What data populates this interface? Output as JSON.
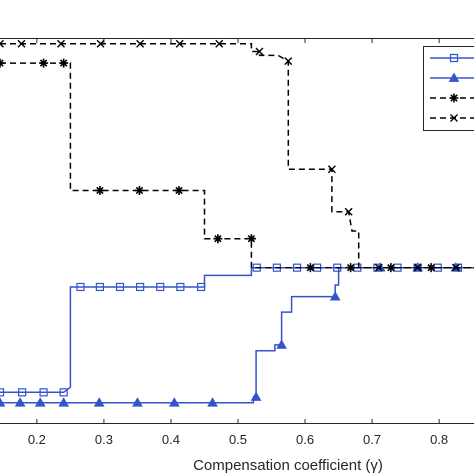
{
  "chart_data": {
    "type": "line",
    "title": "",
    "xlabel": "Compensation coefficient (γ)",
    "ylabel": "",
    "xlim": [
      0.145,
      0.852
    ],
    "ylim": [
      0,
      1
    ],
    "xticks": [
      "0.2",
      "0.3",
      "0.4",
      "0.5",
      "0.6",
      "0.7",
      "0.8"
    ],
    "xtick_values": [
      0.2,
      0.3,
      0.4,
      0.5,
      0.6,
      0.7,
      0.8
    ],
    "grid": false,
    "legend_position": "top-right",
    "series": [
      {
        "marker": "square",
        "linestyle": "solid",
        "color": "#3355cc",
        "points": [
          [
            0.145,
            0.082
          ],
          [
            0.178,
            0.082
          ],
          [
            0.21,
            0.082
          ],
          [
            0.24,
            0.082
          ],
          [
            0.25,
            0.095
          ],
          [
            0.25,
            0.355
          ],
          [
            0.265,
            0.355
          ],
          [
            0.294,
            0.355
          ],
          [
            0.324,
            0.355
          ],
          [
            0.354,
            0.355
          ],
          [
            0.384,
            0.355
          ],
          [
            0.414,
            0.355
          ],
          [
            0.445,
            0.355
          ],
          [
            0.45,
            0.355
          ],
          [
            0.45,
            0.385
          ],
          [
            0.52,
            0.385
          ],
          [
            0.52,
            0.405
          ],
          [
            0.528,
            0.405
          ],
          [
            0.558,
            0.405
          ],
          [
            0.588,
            0.405
          ],
          [
            0.618,
            0.405
          ],
          [
            0.648,
            0.405
          ],
          [
            0.678,
            0.405
          ],
          [
            0.708,
            0.405
          ],
          [
            0.738,
            0.405
          ],
          [
            0.768,
            0.405
          ],
          [
            0.798,
            0.405
          ],
          [
            0.828,
            0.405
          ],
          [
            0.852,
            0.405
          ]
        ],
        "marker_x": [
          0.145,
          0.178,
          0.21,
          0.24,
          0.265,
          0.294,
          0.324,
          0.354,
          0.384,
          0.414,
          0.445,
          0.528,
          0.558,
          0.588,
          0.618,
          0.648,
          0.678,
          0.708,
          0.738,
          0.768,
          0.798,
          0.828
        ]
      },
      {
        "marker": "triangle",
        "linestyle": "solid",
        "color": "#3355cc",
        "points": [
          [
            0.145,
            0.055
          ],
          [
            0.175,
            0.055
          ],
          [
            0.205,
            0.055
          ],
          [
            0.24,
            0.055
          ],
          [
            0.293,
            0.055
          ],
          [
            0.35,
            0.055
          ],
          [
            0.405,
            0.055
          ],
          [
            0.462,
            0.055
          ],
          [
            0.52,
            0.055
          ],
          [
            0.523,
            0.055
          ],
          [
            0.523,
            0.07
          ],
          [
            0.527,
            0.07
          ],
          [
            0.527,
            0.19
          ],
          [
            0.555,
            0.19
          ],
          [
            0.555,
            0.205
          ],
          [
            0.565,
            0.205
          ],
          [
            0.565,
            0.29
          ],
          [
            0.58,
            0.29
          ],
          [
            0.58,
            0.33
          ],
          [
            0.645,
            0.33
          ],
          [
            0.645,
            0.36
          ],
          [
            0.65,
            0.36
          ],
          [
            0.65,
            0.405
          ],
          [
            0.712,
            0.405
          ],
          [
            0.768,
            0.405
          ],
          [
            0.825,
            0.405
          ],
          [
            0.852,
            0.405
          ]
        ],
        "marker_x": [
          0.145,
          0.175,
          0.205,
          0.24,
          0.293,
          0.35,
          0.405,
          0.462,
          0.527,
          0.565,
          0.645,
          0.712,
          0.768,
          0.825
        ]
      },
      {
        "marker": "asterisk",
        "linestyle": "dashed",
        "color": "#000000",
        "points": [
          [
            0.145,
            0.935
          ],
          [
            0.177,
            0.935
          ],
          [
            0.21,
            0.935
          ],
          [
            0.24,
            0.935
          ],
          [
            0.25,
            0.935
          ],
          [
            0.25,
            0.605
          ],
          [
            0.265,
            0.605
          ],
          [
            0.294,
            0.605
          ],
          [
            0.353,
            0.605
          ],
          [
            0.412,
            0.605
          ],
          [
            0.45,
            0.605
          ],
          [
            0.45,
            0.48
          ],
          [
            0.47,
            0.48
          ],
          [
            0.5,
            0.48
          ],
          [
            0.52,
            0.48
          ],
          [
            0.52,
            0.405
          ],
          [
            0.548,
            0.405
          ],
          [
            0.608,
            0.405
          ],
          [
            0.668,
            0.405
          ],
          [
            0.728,
            0.405
          ],
          [
            0.788,
            0.405
          ],
          [
            0.852,
            0.405
          ]
        ],
        "marker_x": [
          0.145,
          0.21,
          0.24,
          0.294,
          0.353,
          0.412,
          0.47,
          0.52,
          0.608,
          0.668,
          0.728,
          0.788
        ]
      },
      {
        "marker": "x",
        "linestyle": "dashed",
        "color": "#000000",
        "points": [
          [
            0.145,
            0.985
          ],
          [
            0.177,
            0.985
          ],
          [
            0.236,
            0.985
          ],
          [
            0.295,
            0.985
          ],
          [
            0.354,
            0.985
          ],
          [
            0.413,
            0.985
          ],
          [
            0.472,
            0.985
          ],
          [
            0.52,
            0.985
          ],
          [
            0.52,
            0.965
          ],
          [
            0.532,
            0.965
          ],
          [
            0.532,
            0.955
          ],
          [
            0.56,
            0.955
          ],
          [
            0.575,
            0.94
          ],
          [
            0.575,
            0.66
          ],
          [
            0.61,
            0.66
          ],
          [
            0.64,
            0.66
          ],
          [
            0.64,
            0.55
          ],
          [
            0.665,
            0.55
          ],
          [
            0.67,
            0.5
          ],
          [
            0.68,
            0.5
          ],
          [
            0.68,
            0.405
          ],
          [
            0.71,
            0.405
          ],
          [
            0.768,
            0.405
          ],
          [
            0.825,
            0.405
          ],
          [
            0.852,
            0.405
          ]
        ],
        "marker_x": [
          0.145,
          0.177,
          0.236,
          0.295,
          0.354,
          0.413,
          0.472,
          0.532,
          0.575,
          0.64,
          0.665,
          0.71,
          0.768,
          0.825
        ]
      }
    ]
  }
}
